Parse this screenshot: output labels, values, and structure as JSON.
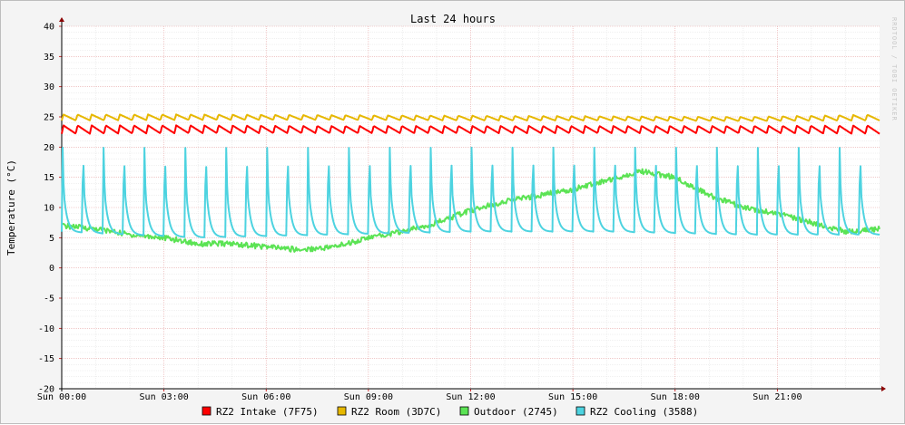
{
  "chart_data": {
    "type": "line",
    "title": "Last 24 hours",
    "ylabel": "Temperature (°C)",
    "ylim": [
      -20,
      40
    ],
    "y_ticks": [
      "40",
      "35",
      "30",
      "25",
      "20",
      "15",
      "10",
      "5",
      "0",
      "-5",
      "-10",
      "-15",
      "-20"
    ],
    "x_ticks": [
      "Sun 00:00",
      "Sun 03:00",
      "Sun 06:00",
      "Sun 09:00",
      "Sun 12:00",
      "Sun 15:00",
      "Sun 18:00",
      "Sun 21:00"
    ],
    "x_range_hours": [
      0,
      24
    ],
    "grid": true,
    "legend_position": "bottom",
    "watermark": "RRDTOOL / TOBI OETIKER",
    "series": [
      {
        "name": "RZ2 Intake (7F75)",
        "color": "#ff0000",
        "pattern": "sawtooth",
        "cycles": 58,
        "x": [
          0,
          4,
          8,
          12,
          16,
          20,
          24
        ],
        "y_low": [
          22.2,
          22.3,
          22.3,
          22.3,
          22.3,
          22.3,
          22.2
        ],
        "y_high": [
          23.6,
          23.6,
          23.5,
          23.5,
          23.5,
          23.5,
          23.6
        ]
      },
      {
        "name": "RZ2 Room (3D7C)",
        "color": "#e6b800",
        "pattern": "sawtooth",
        "cycles": 58,
        "x": [
          0,
          4,
          8,
          12,
          16,
          20,
          24
        ],
        "y_low": [
          24.4,
          24.5,
          24.5,
          24.4,
          24.4,
          24.3,
          24.4
        ],
        "y_high": [
          25.4,
          25.4,
          25.3,
          25.2,
          25.1,
          25.0,
          25.4
        ]
      },
      {
        "name": "Outdoor (2745)",
        "color": "#5be354",
        "pattern": "smooth",
        "x": [
          0,
          1,
          2,
          3,
          4,
          5,
          6,
          7,
          8,
          9,
          10,
          11,
          12,
          13,
          14,
          15,
          16,
          17,
          18,
          19,
          20,
          21,
          22,
          23,
          24
        ],
        "y": [
          7,
          6.5,
          5.5,
          5,
          4,
          4,
          3.5,
          3,
          3.5,
          5,
          6,
          7.5,
          9.5,
          11,
          12,
          13,
          14.5,
          16,
          15,
          12,
          10,
          9,
          7.5,
          6,
          6.5
        ]
      },
      {
        "name": "RZ2 Cooling (3588)",
        "color": "#4dd3e0",
        "pattern": "spike",
        "cycles": 40,
        "x": [
          0,
          4,
          8,
          12,
          16,
          20,
          24
        ],
        "y_base": [
          6,
          5,
          5.5,
          6,
          6,
          5.5,
          5.5
        ],
        "y_peak": [
          20.5,
          20.5,
          20.5,
          20.5,
          20.5,
          20.5,
          20.5
        ]
      }
    ]
  }
}
